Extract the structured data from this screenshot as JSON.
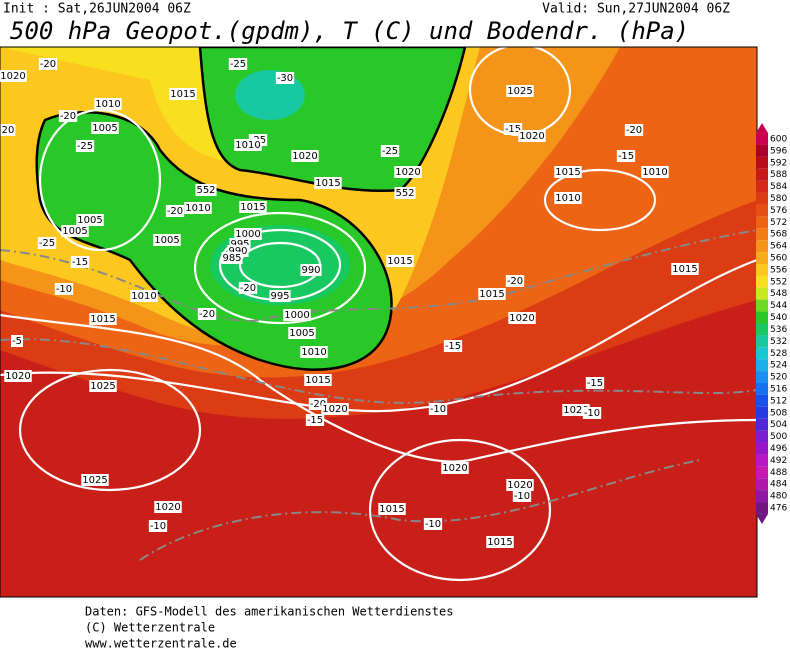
{
  "header": {
    "init": "Init : Sat,26JUN2004 06Z",
    "valid": "Valid: Sun,27JUN2004 06Z",
    "title": "500 hPa Geopot.(gpdm), T (C) und Bodendr. (hPa)"
  },
  "colorbar": {
    "levels": [
      600,
      596,
      592,
      588,
      584,
      580,
      576,
      572,
      568,
      564,
      560,
      556,
      552,
      548,
      544,
      540,
      536,
      532,
      528,
      524,
      520,
      516,
      512,
      508,
      504,
      500,
      496,
      492,
      488,
      484,
      480,
      476
    ],
    "colors": [
      "#c8004e",
      "#a8002a",
      "#b80c1c",
      "#c81818",
      "#d42818",
      "#dc3c14",
      "#e45014",
      "#ec6414",
      "#f07c14",
      "#f49418",
      "#f8ac1c",
      "#fcc820",
      "#f8e020",
      "#c8e820",
      "#70d820",
      "#28c828",
      "#18c860",
      "#18c8a0",
      "#18c8d0",
      "#18b0e8",
      "#1890f0",
      "#1870f0",
      "#1850e8",
      "#2838e0",
      "#5028d8",
      "#7820d0",
      "#9818c8",
      "#b818c0",
      "#c818b0",
      "#b018a8",
      "#9018a0",
      "#701880"
    ]
  },
  "contour_labels": [
    "1020",
    "-20",
    "-25",
    "-30",
    "1015",
    "1010",
    "-20",
    "1005",
    "-25",
    "-25",
    "1010",
    "1020",
    "-25",
    "1015",
    "1020",
    "552",
    "552",
    "-20",
    "1010",
    "1015",
    "1005",
    "1005",
    "-25",
    "1005",
    "1000",
    "995",
    "990",
    "985",
    "990",
    "-20",
    "995",
    "-15",
    "-10",
    "1010",
    "1015",
    "-20",
    "1000",
    "1005",
    "1010",
    "1015",
    "-5",
    "1020",
    "1025",
    "1015",
    "1015",
    "-20",
    "1020",
    "-15",
    "1025",
    "-15",
    "1020",
    "1015",
    "1010",
    "-20",
    "-15",
    "1010",
    "1015",
    "-15",
    "1020",
    "-10",
    "-20",
    "1020",
    "-15",
    "1020",
    "1025",
    "1020",
    "-10",
    "1015",
    "-10",
    "1020",
    "-10",
    "1015",
    "-10",
    "20"
  ],
  "footer": [
    "Daten: GFS-Modell des amerikanischen Wetterdienstes",
    "(C) Wetterzentrale",
    "www.wetterzentrale.de"
  ]
}
